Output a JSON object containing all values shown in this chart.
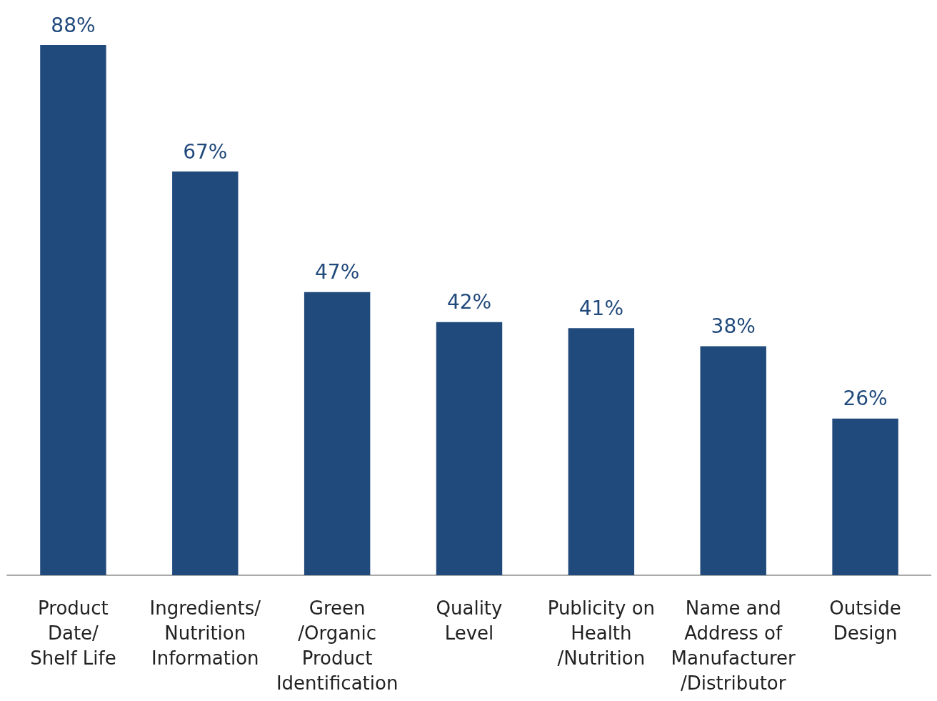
{
  "chart_data": {
    "type": "bar",
    "categories": [
      "Product\nDate/\nShelf Life",
      "Ingredients/\nNutrition\nInformation",
      "Green\n/Organic\nProduct\nIdentification",
      "Quality\nLevel",
      "Publicity on\nHealth\n/Nutrition",
      "Name and\nAddress of\nManufacturer\n/Distributor",
      "Outside\nDesign"
    ],
    "values": [
      88,
      67,
      47,
      42,
      41,
      38,
      26
    ],
    "value_labels": [
      "88%",
      "67%",
      "47%",
      "42%",
      "41%",
      "38%",
      "26%"
    ],
    "color": "#214a7c"
  }
}
